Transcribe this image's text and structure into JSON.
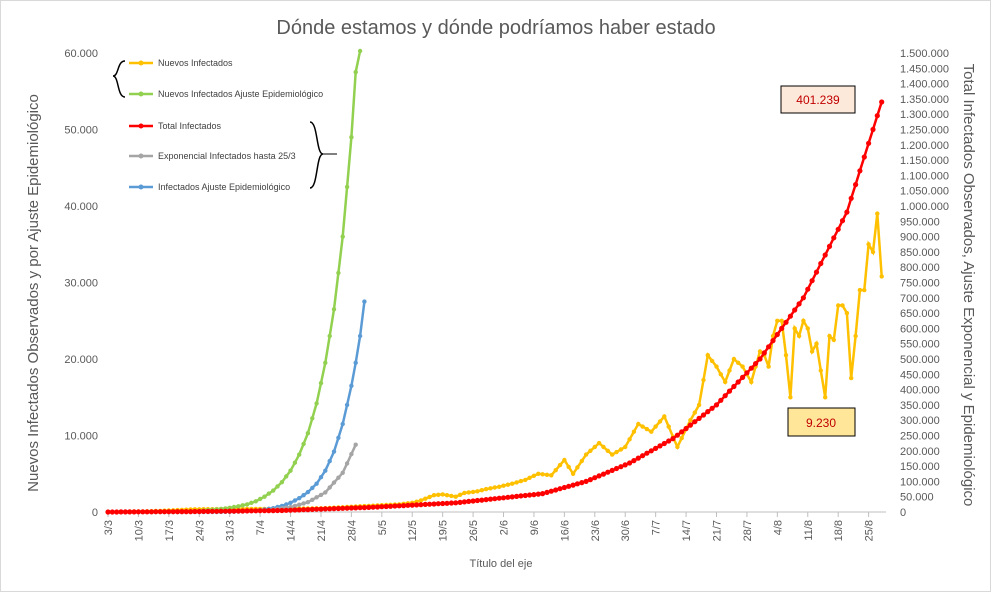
{
  "chart_data": {
    "type": "line",
    "title": "Dónde estamos y dónde podríamos haber estado",
    "xlabel": "Título del eje",
    "ylabel_left": "Nuevos Infectados Observados y por Ajuste Epidemiológico",
    "ylabel_right": "Total Infectados Observados, Ajuste Exponencial y Epidemiológico",
    "x_start": "3/3",
    "x_days": 179,
    "x_tick_labels": [
      "3/3",
      "10/3",
      "17/3",
      "24/3",
      "31/3",
      "7/4",
      "14/4",
      "21/4",
      "28/4",
      "5/5",
      "12/5",
      "19/5",
      "26/5",
      "2/6",
      "9/6",
      "16/6",
      "23/6",
      "30/6",
      "7/7",
      "14/7",
      "21/7",
      "28/7",
      "4/8",
      "11/8",
      "18/8",
      "25/8"
    ],
    "ylim_left": [
      0,
      60000
    ],
    "ylim_right": [
      0,
      1500000
    ],
    "y_left_ticks": [
      "0",
      "10.000",
      "20.000",
      "30.000",
      "40.000",
      "50.000",
      "60.000"
    ],
    "y_right_ticks": [
      "0",
      "50.000",
      "100.000",
      "150.000",
      "200.000",
      "250.000",
      "300.000",
      "350.000",
      "400.000",
      "450.000",
      "500.000",
      "550.000",
      "600.000",
      "650.000",
      "700.000",
      "750.000",
      "800.000",
      "850.000",
      "900.000",
      "950.000",
      "1.000.000",
      "1.050.000",
      "1.100.000",
      "1.150.000",
      "1.200.000",
      "1.250.000",
      "1.300.000",
      "1.350.000",
      "1.400.000",
      "1.450.000",
      "1.500.000"
    ],
    "grid": false,
    "legend_position": "top-left",
    "series": [
      {
        "name": "Nuevos Infectados",
        "color": "#ffc000",
        "axis": "left",
        "x": [
          0,
          10,
          20,
          30,
          40,
          50,
          60,
          67,
          70,
          72,
          75,
          77,
          80,
          82,
          85,
          87,
          90,
          93,
          96,
          99,
          102,
          105,
          107,
          110,
          113,
          116,
          119,
          122,
          125,
          128,
          131,
          134,
          136,
          138,
          140,
          142,
          144,
          146,
          148,
          150,
          151,
          152,
          153,
          154,
          155,
          156,
          157,
          158,
          159,
          160,
          161,
          162,
          163,
          164,
          165,
          166,
          167,
          168,
          169,
          170,
          171,
          172,
          173,
          174,
          175,
          176,
          177,
          178
        ],
        "values": [
          0,
          100,
          350,
          400,
          400,
          500,
          800,
          1000,
          1200,
          1500,
          2200,
          2300,
          2000,
          2500,
          2700,
          3000,
          3300,
          3700,
          4200,
          5000,
          4800,
          6800,
          5000,
          7500,
          9000,
          7500,
          8500,
          11500,
          10500,
          12500,
          8500,
          12000,
          14000,
          20500,
          19000,
          17000,
          20000,
          19000,
          17000,
          21000,
          20500,
          19000,
          23000,
          25000,
          25000,
          20500,
          15000,
          24000,
          23000,
          25000,
          24000,
          21000,
          22000,
          18500,
          15000,
          23000,
          22500,
          27000,
          27000,
          26000,
          17500,
          23000,
          29000,
          29000,
          35000,
          34000,
          39000,
          30800
        ]
      },
      {
        "name": "Nuevos Infectados Ajuste Epidemiológico",
        "color": "#92d050",
        "axis": "left",
        "x": [
          0,
          6,
          10,
          14,
          17,
          20,
          22,
          24,
          26,
          28,
          30,
          32,
          34,
          36,
          38,
          40,
          42,
          44,
          46,
          48,
          50,
          52,
          54,
          56,
          58
        ],
        "values": [
          0,
          0,
          0,
          0,
          0,
          100,
          200,
          300,
          400,
          550,
          750,
          1000,
          1400,
          2000,
          2800,
          3900,
          5400,
          7500,
          10300,
          14200,
          19500,
          26500,
          36000,
          49000,
          66000
        ]
      },
      {
        "name": "Total Infectados",
        "color": "#ff0000",
        "axis": "right",
        "x": [
          0,
          20,
          40,
          60,
          80,
          100,
          110,
          120,
          130,
          140,
          150,
          160,
          170,
          178
        ],
        "values": [
          0,
          1500,
          5000,
          15000,
          30000,
          60000,
          100000,
          160000,
          240000,
          350000,
          500000,
          700000,
          980000,
          1340000
        ]
      },
      {
        "name": "Exponencial Infectados hasta 25/3",
        "color": "#a5a5a5",
        "axis": "right",
        "x": [
          30,
          34,
          38,
          42,
          46,
          50,
          54,
          57
        ],
        "values": [
          2000,
          4000,
          8000,
          16000,
          32000,
          64000,
          128000,
          220000
        ]
      },
      {
        "name": "Infectados Ajuste Epidemiológico",
        "color": "#5b9bd5",
        "axis": "left",
        "x": [
          0,
          10,
          20,
          25,
          30,
          34,
          38,
          40,
          42,
          44,
          46,
          48,
          50,
          52,
          54,
          56,
          57,
          58,
          59
        ],
        "values": [
          0,
          0,
          0,
          0,
          50,
          150,
          500,
          800,
          1200,
          1800,
          2600,
          3700,
          5400,
          7900,
          11500,
          16500,
          19500,
          23000,
          27500
        ]
      }
    ],
    "annotations": [
      {
        "text": "401.239",
        "box_color": "#fde9d9"
      },
      {
        "text": "9.230",
        "box_color": "#ffe699"
      }
    ]
  }
}
